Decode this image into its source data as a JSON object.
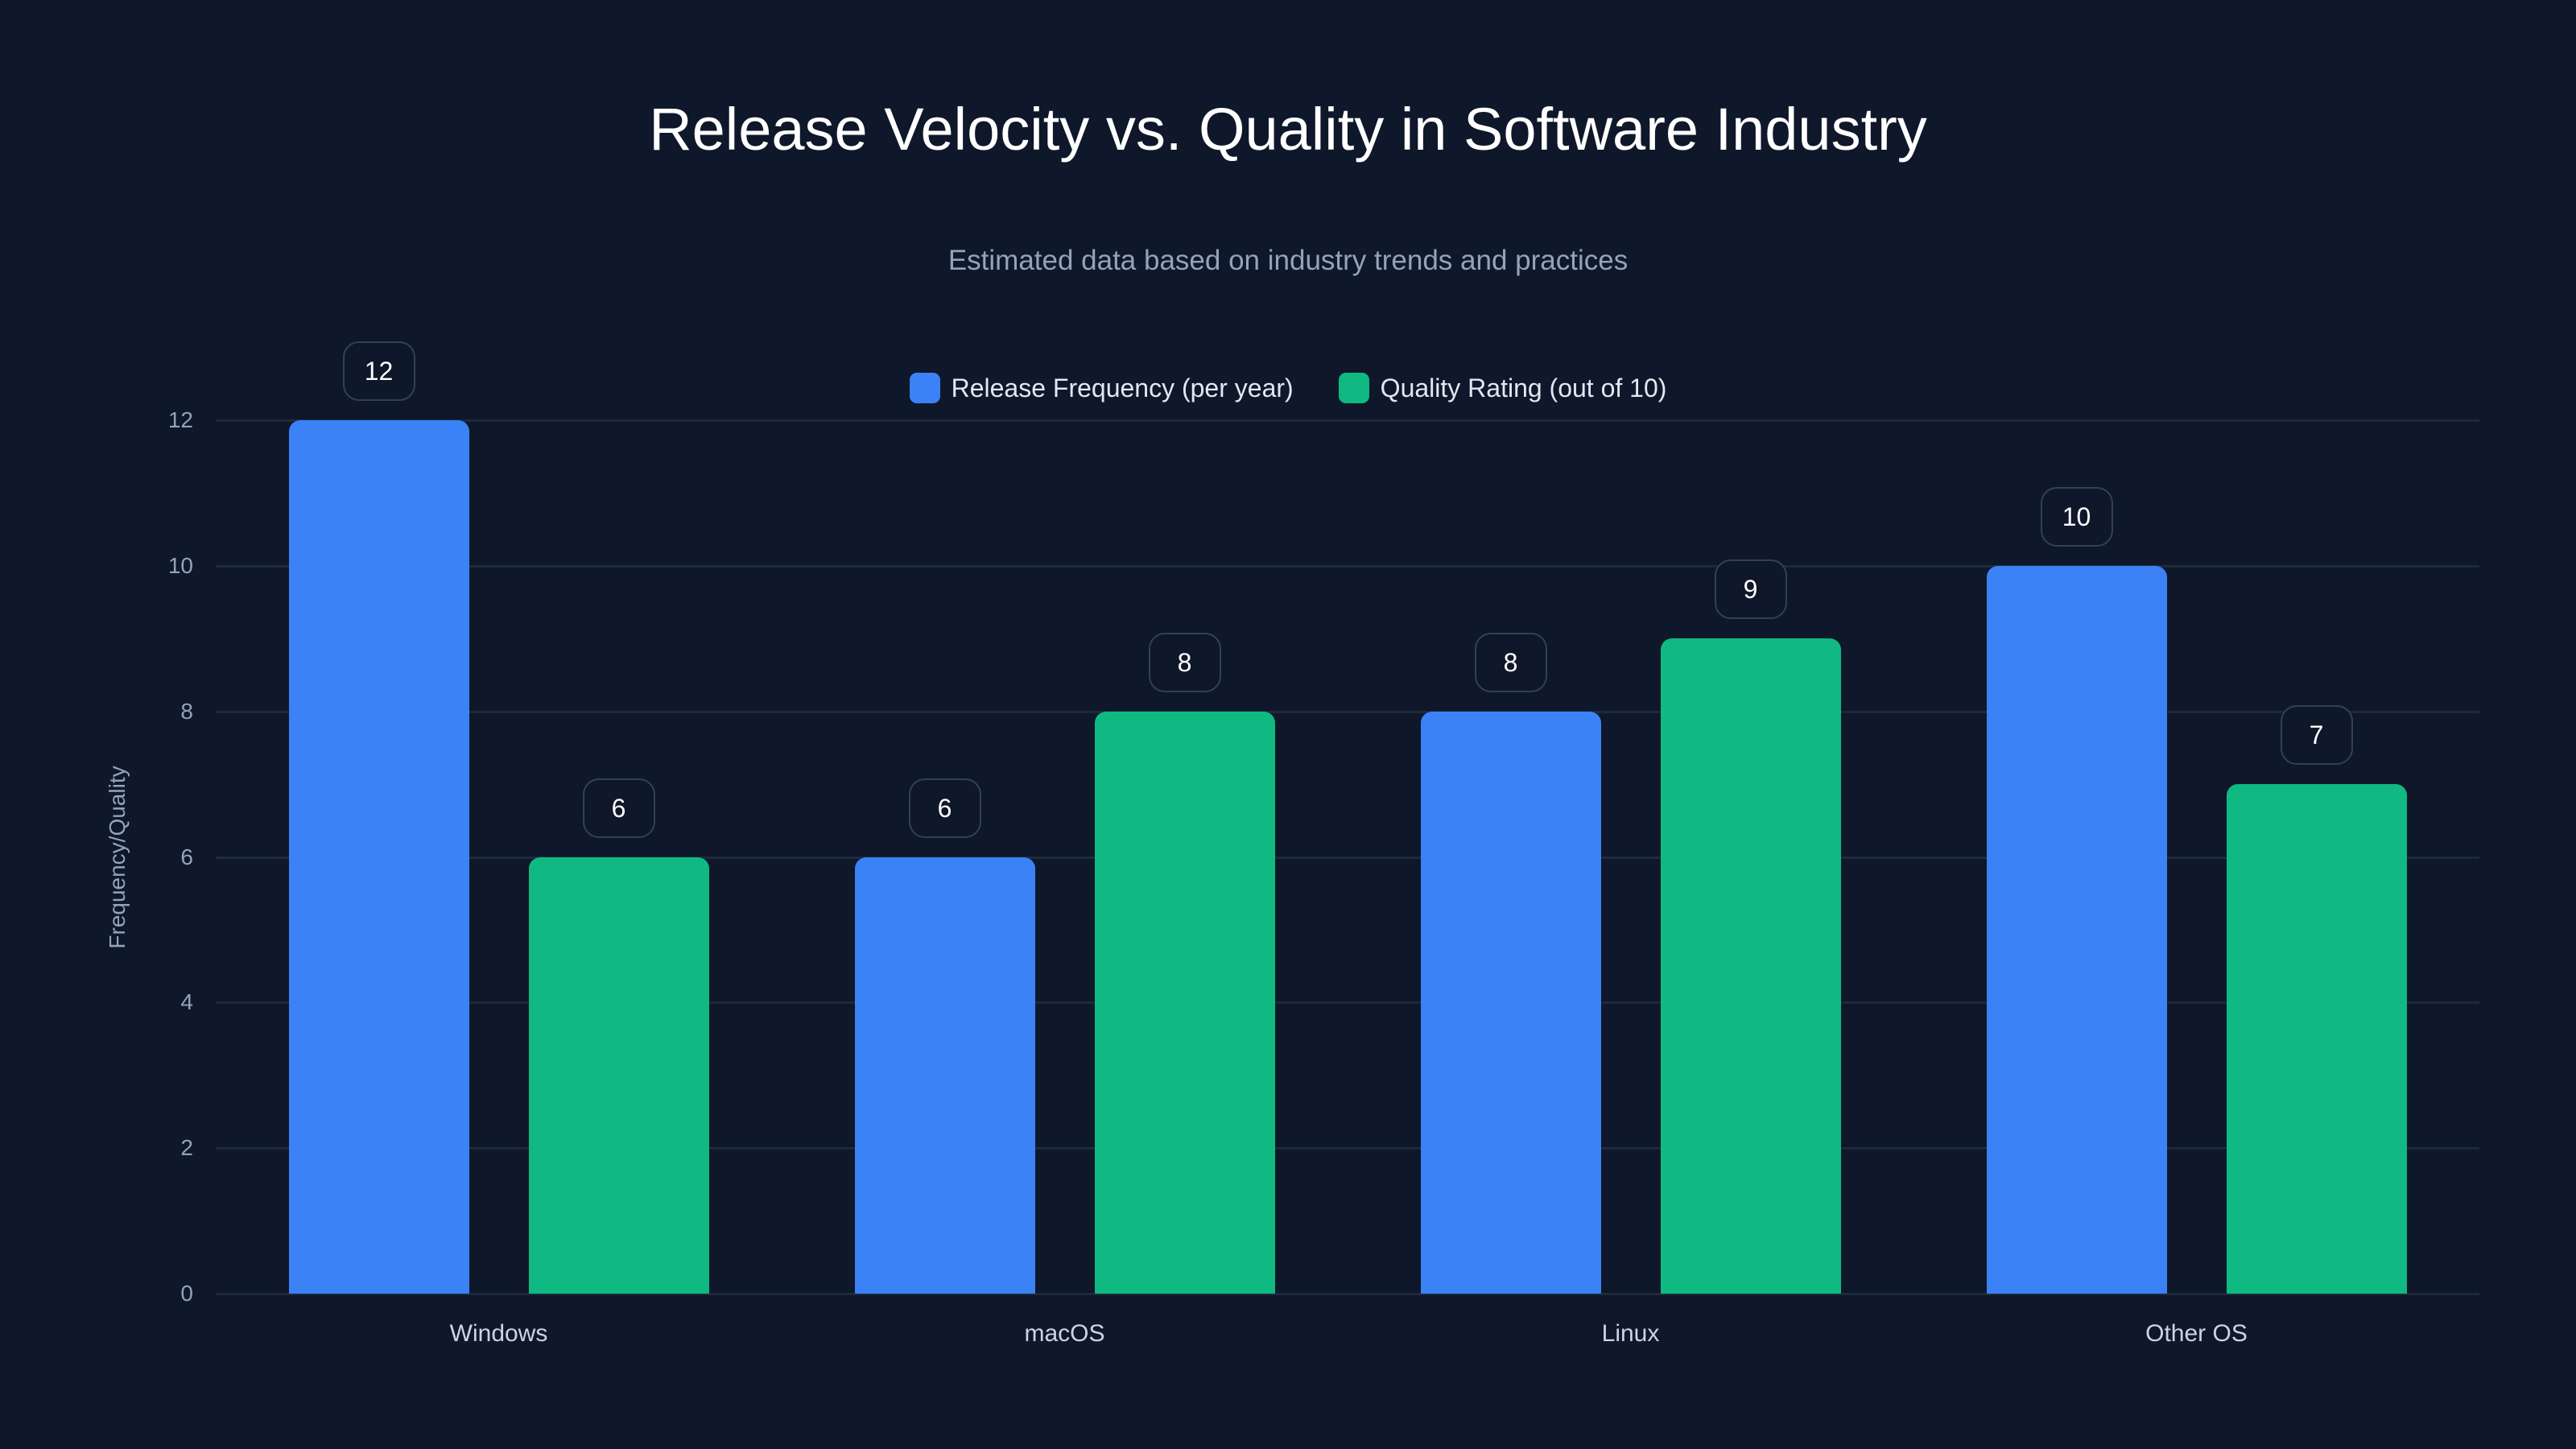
{
  "header": {
    "title": "Release Velocity vs. Quality in Software Industry",
    "subtitle": "Estimated data based on industry trends and practices"
  },
  "legend": [
    {
      "label": "Release Frequency (per year)",
      "color": "#3b82f6"
    },
    {
      "label": "Quality Rating (out of 10)",
      "color": "#10b981"
    }
  ],
  "axes": {
    "ylabel": "Frequency/Quality",
    "yticks": [
      "0",
      "2",
      "4",
      "6",
      "8",
      "10",
      "12"
    ],
    "xticks": [
      "Windows",
      "macOS",
      "Linux",
      "Other OS"
    ]
  },
  "bar_labels": {
    "release": [
      "12",
      "6",
      "8",
      "10"
    ],
    "quality": [
      "6",
      "8",
      "9",
      "7"
    ]
  },
  "chart_data": {
    "type": "bar",
    "title": "Release Velocity vs. Quality in Software Industry",
    "subtitle": "Estimated data based on industry trends and practices",
    "categories": [
      "Windows",
      "macOS",
      "Linux",
      "Other OS"
    ],
    "series": [
      {
        "name": "Release Frequency (per year)",
        "color": "#3b82f6",
        "values": [
          12,
          6,
          8,
          10
        ]
      },
      {
        "name": "Quality Rating (out of 10)",
        "color": "#10b981",
        "values": [
          6,
          8,
          9,
          7
        ]
      }
    ],
    "xlabel": "",
    "ylabel": "Frequency/Quality",
    "ylim": [
      0,
      12
    ],
    "yticks": [
      0,
      2,
      4,
      6,
      8,
      10,
      12
    ],
    "grid": true,
    "legend_position": "top-center",
    "data_labels": true
  }
}
